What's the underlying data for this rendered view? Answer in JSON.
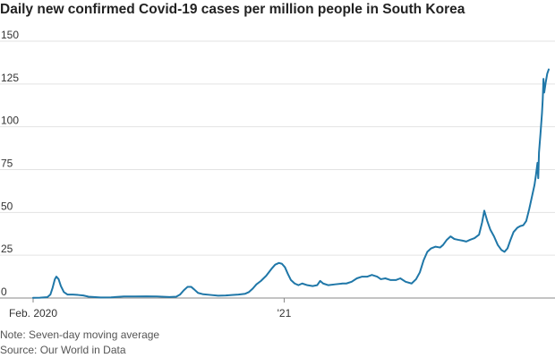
{
  "chart_data": {
    "type": "line",
    "title": "Daily new confirmed Covid-19 cases per million people in South Korea",
    "xlabel": "",
    "ylabel": "",
    "x_ticks": [
      "Feb. 2020",
      "'21"
    ],
    "y_ticks": [
      "0",
      "25",
      "50",
      "75",
      "100",
      "125",
      "150"
    ],
    "ylim": [
      0,
      150
    ],
    "xlim": [
      "2020-02-01",
      "2021-12-20"
    ],
    "grid": "horizontal",
    "series": [
      {
        "color": "#1f77a8",
        "points": [
          [
            "2020-02-01",
            0.1
          ],
          [
            "2020-02-10",
            0.2
          ],
          [
            "2020-02-20",
            0.5
          ],
          [
            "2020-02-24",
            2.0
          ],
          [
            "2020-02-27",
            6.0
          ],
          [
            "2020-03-01",
            11.0
          ],
          [
            "2020-03-03",
            12.5
          ],
          [
            "2020-03-06",
            11.0
          ],
          [
            "2020-03-09",
            7.0
          ],
          [
            "2020-03-13",
            3.5
          ],
          [
            "2020-03-18",
            2.0
          ],
          [
            "2020-03-25",
            2.0
          ],
          [
            "2020-04-01",
            1.8
          ],
          [
            "2020-04-08",
            1.5
          ],
          [
            "2020-04-15",
            0.8
          ],
          [
            "2020-05-01",
            0.3
          ],
          [
            "2020-05-15",
            0.4
          ],
          [
            "2020-06-01",
            0.9
          ],
          [
            "2020-06-15",
            0.9
          ],
          [
            "2020-07-01",
            1.0
          ],
          [
            "2020-07-15",
            0.9
          ],
          [
            "2020-08-01",
            0.6
          ],
          [
            "2020-08-10",
            0.8
          ],
          [
            "2020-08-15",
            2.0
          ],
          [
            "2020-08-20",
            4.5
          ],
          [
            "2020-08-25",
            6.5
          ],
          [
            "2020-08-30",
            6.5
          ],
          [
            "2020-09-03",
            5.0
          ],
          [
            "2020-09-08",
            3.0
          ],
          [
            "2020-09-15",
            2.2
          ],
          [
            "2020-09-25",
            1.8
          ],
          [
            "2020-10-05",
            1.4
          ],
          [
            "2020-10-15",
            1.5
          ],
          [
            "2020-10-25",
            1.8
          ],
          [
            "2020-11-01",
            2.0
          ],
          [
            "2020-11-10",
            2.5
          ],
          [
            "2020-11-15",
            3.5
          ],
          [
            "2020-11-20",
            5.5
          ],
          [
            "2020-11-25",
            8.0
          ],
          [
            "2020-12-01",
            10.0
          ],
          [
            "2020-12-08",
            13.0
          ],
          [
            "2020-12-15",
            17.0
          ],
          [
            "2020-12-20",
            19.5
          ],
          [
            "2020-12-25",
            20.5
          ],
          [
            "2020-12-29",
            20.0
          ],
          [
            "2021-01-02",
            18.0
          ],
          [
            "2021-01-06",
            14.0
          ],
          [
            "2021-01-10",
            10.5
          ],
          [
            "2021-01-15",
            8.5
          ],
          [
            "2021-01-20",
            7.5
          ],
          [
            "2021-01-25",
            8.5
          ],
          [
            "2021-02-01",
            7.5
          ],
          [
            "2021-02-08",
            7.0
          ],
          [
            "2021-02-14",
            7.5
          ],
          [
            "2021-02-18",
            10.0
          ],
          [
            "2021-02-22",
            8.5
          ],
          [
            "2021-03-01",
            7.5
          ],
          [
            "2021-03-10",
            8.0
          ],
          [
            "2021-03-20",
            8.5
          ],
          [
            "2021-03-25",
            8.5
          ],
          [
            "2021-04-01",
            9.5
          ],
          [
            "2021-04-08",
            11.5
          ],
          [
            "2021-04-15",
            12.5
          ],
          [
            "2021-04-22",
            12.5
          ],
          [
            "2021-04-28",
            13.5
          ],
          [
            "2021-05-05",
            12.5
          ],
          [
            "2021-05-10",
            11.0
          ],
          [
            "2021-05-16",
            11.5
          ],
          [
            "2021-05-23",
            10.5
          ],
          [
            "2021-05-30",
            10.5
          ],
          [
            "2021-06-05",
            11.5
          ],
          [
            "2021-06-12",
            9.5
          ],
          [
            "2021-06-20",
            8.5
          ],
          [
            "2021-06-26",
            11.0
          ],
          [
            "2021-07-01",
            15.0
          ],
          [
            "2021-07-06",
            22.0
          ],
          [
            "2021-07-11",
            27.0
          ],
          [
            "2021-07-16",
            29.0
          ],
          [
            "2021-07-22",
            30.0
          ],
          [
            "2021-07-28",
            29.5
          ],
          [
            "2021-08-01",
            31.0
          ],
          [
            "2021-08-06",
            34.0
          ],
          [
            "2021-08-11",
            36.0
          ],
          [
            "2021-08-16",
            34.5
          ],
          [
            "2021-08-21",
            34.0
          ],
          [
            "2021-08-27",
            33.5
          ],
          [
            "2021-09-01",
            33.0
          ],
          [
            "2021-09-06",
            34.0
          ],
          [
            "2021-09-12",
            35.0
          ],
          [
            "2021-09-18",
            37.0
          ],
          [
            "2021-09-22",
            44.0
          ],
          [
            "2021-09-25",
            51.0
          ],
          [
            "2021-09-29",
            45.0
          ],
          [
            "2021-10-03",
            40.0
          ],
          [
            "2021-10-08",
            36.0
          ],
          [
            "2021-10-13",
            31.0
          ],
          [
            "2021-10-18",
            28.0
          ],
          [
            "2021-10-22",
            27.0
          ],
          [
            "2021-10-26",
            29.0
          ],
          [
            "2021-10-30",
            34.0
          ],
          [
            "2021-11-03",
            38.5
          ],
          [
            "2021-11-08",
            41.0
          ],
          [
            "2021-11-12",
            42.0
          ],
          [
            "2021-11-16",
            42.5
          ],
          [
            "2021-11-20",
            45.0
          ],
          [
            "2021-11-24",
            52.0
          ],
          [
            "2021-11-28",
            60.0
          ],
          [
            "2021-12-01",
            66.0
          ],
          [
            "2021-12-03",
            72.0
          ],
          [
            "2021-12-05",
            79.0
          ],
          [
            "2021-12-06",
            70.0
          ],
          [
            "2021-12-07",
            85.0
          ],
          [
            "2021-12-09",
            96.0
          ],
          [
            "2021-12-11",
            108.0
          ],
          [
            "2021-12-12",
            116.0
          ],
          [
            "2021-12-13",
            128.0
          ],
          [
            "2021-12-14",
            120.0
          ],
          [
            "2021-12-16",
            126.0
          ],
          [
            "2021-12-18",
            131.0
          ],
          [
            "2021-12-20",
            133.5
          ]
        ]
      }
    ]
  },
  "footnotes": {
    "note": "Note: Seven-day moving average",
    "source": "Source: Our World in Data"
  }
}
